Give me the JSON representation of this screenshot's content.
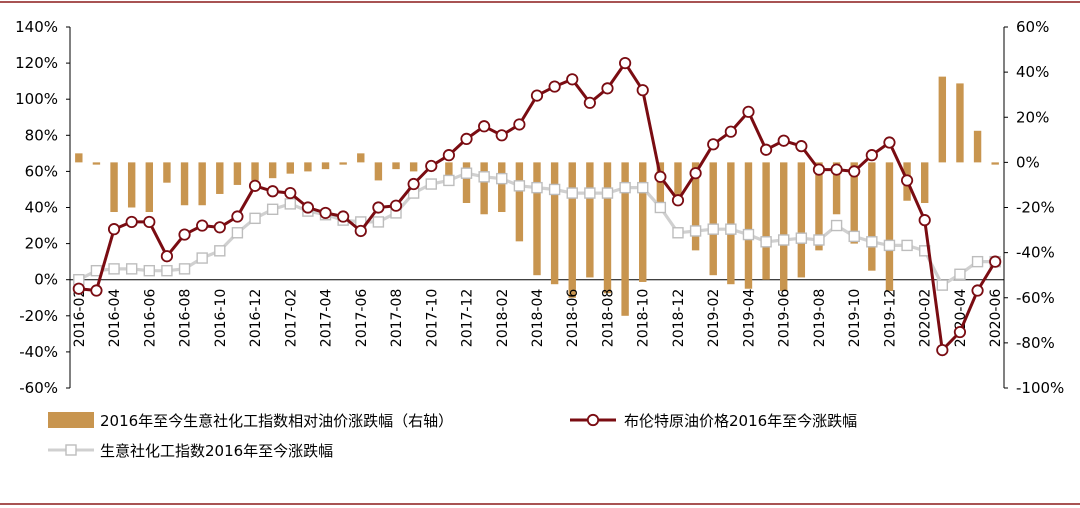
{
  "chart_data": {
    "type": "bar+line",
    "title": "",
    "x": [
      "2016-02",
      "2016-03",
      "2016-04",
      "2016-05",
      "2016-06",
      "2016-07",
      "2016-08",
      "2016-09",
      "2016-10",
      "2016-11",
      "2016-12",
      "2017-01",
      "2017-02",
      "2017-03",
      "2017-04",
      "2017-05",
      "2017-06",
      "2017-07",
      "2017-08",
      "2017-09",
      "2017-10",
      "2017-11",
      "2017-12",
      "2018-01",
      "2018-02",
      "2018-03",
      "2018-04",
      "2018-05",
      "2018-06",
      "2018-07",
      "2018-08",
      "2018-09",
      "2018-10",
      "2018-11",
      "2018-12",
      "2019-01",
      "2019-02",
      "2019-03",
      "2019-04",
      "2019-05",
      "2019-06",
      "2019-07",
      "2019-08",
      "2019-09",
      "2019-10",
      "2019-11",
      "2019-12",
      "2020-01",
      "2020-02",
      "2020-03",
      "2020-04",
      "2020-05",
      "2020-06"
    ],
    "x_tick_labels": [
      "2016-02",
      "2016-04",
      "2016-06",
      "2016-08",
      "2016-10",
      "2016-12",
      "2017-02",
      "2017-04",
      "2017-06",
      "2017-08",
      "2017-10",
      "2017-12",
      "2018-02",
      "2018-04",
      "2018-06",
      "2018-08",
      "2018-10",
      "2018-12",
      "2019-02",
      "2019-04",
      "2019-06",
      "2019-08",
      "2019-10",
      "2019-12",
      "2020-02",
      "2020-04",
      "2020-06"
    ],
    "y_left": {
      "min": -60,
      "max": 140,
      "ticks": [
        "140%",
        "120%",
        "100%",
        "80%",
        "60%",
        "40%",
        "20%",
        "0%",
        "-20%",
        "-40%",
        "-60%"
      ]
    },
    "y_right": {
      "min": -100,
      "max": 60,
      "ticks": [
        "60%",
        "40%",
        "20%",
        "0%",
        "-20%",
        "-40%",
        "-60%",
        "-80%",
        "-100%"
      ]
    },
    "legend_position": "bottom",
    "series": [
      {
        "name": "2016年至今生意社化工指数相对油价涨跌幅（右轴）",
        "kind": "bar",
        "axis": "right",
        "color": "#c8954f",
        "values": [
          4,
          -1,
          -22,
          -20,
          -22,
          -9,
          -19,
          -19,
          -14,
          -10,
          -8,
          -7,
          -5,
          -4,
          -3,
          -1,
          4,
          -8,
          -3,
          -4,
          -3,
          -6,
          -18,
          -23,
          -22,
          -35,
          -50,
          -54,
          -60,
          -51,
          -58,
          -68,
          -53,
          -18,
          -19,
          -39,
          -50,
          -54,
          -56,
          -52,
          -57,
          -51,
          -39,
          -23,
          -36,
          -48,
          -57,
          -17,
          -18,
          38,
          35,
          14,
          -1
        ]
      },
      {
        "name": "布伦特原油价格2016年至今涨跌幅",
        "kind": "line",
        "axis": "left",
        "color": "#7a0c12",
        "marker": "circle",
        "values": [
          -5,
          -6,
          28,
          32,
          32,
          13,
          25,
          30,
          29,
          35,
          52,
          49,
          48,
          40,
          37,
          35,
          27,
          40,
          41,
          53,
          63,
          69,
          78,
          85,
          80,
          86,
          102,
          107,
          111,
          98,
          106,
          120,
          105,
          57,
          44,
          59,
          75,
          82,
          93,
          72,
          77,
          74,
          61,
          61,
          60,
          69,
          76,
          55,
          33,
          -39,
          -29,
          -6,
          10
        ]
      },
      {
        "name": "生意社化工指数2016年至今涨跌幅",
        "kind": "line",
        "axis": "left",
        "color": "#d0d0d0",
        "marker": "square",
        "values": [
          0,
          5,
          6,
          6,
          5,
          5,
          6,
          12,
          16,
          26,
          34,
          39,
          42,
          38,
          36,
          33,
          32,
          32,
          37,
          48,
          53,
          55,
          59,
          57,
          56,
          52,
          51,
          50,
          48,
          48,
          48,
          51,
          51,
          40,
          26,
          27,
          28,
          28,
          25,
          21,
          22,
          23,
          22,
          30,
          24,
          21,
          19,
          19,
          16,
          -3,
          3,
          10,
          10
        ]
      }
    ]
  }
}
